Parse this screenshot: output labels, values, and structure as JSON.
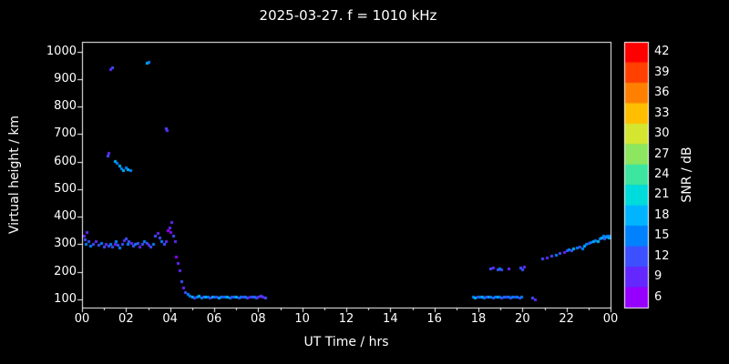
{
  "chart_data": {
    "type": "scatter",
    "title": "2025-03-27. f = 1010 kHz",
    "xlabel": "UT Time / hrs",
    "ylabel": "Virtual height / km",
    "xlim": [
      0,
      24
    ],
    "ylim": [
      70,
      1035
    ],
    "grid": false,
    "background": "#000000",
    "x_tick_labels": [
      "00",
      "02",
      "04",
      "06",
      "08",
      "10",
      "12",
      "14",
      "16",
      "18",
      "20",
      "22",
      "00"
    ],
    "x_tick_hours": [
      0,
      2,
      4,
      6,
      8,
      10,
      12,
      14,
      16,
      18,
      20,
      22,
      24
    ],
    "y_ticks": [
      100,
      200,
      300,
      400,
      500,
      600,
      700,
      800,
      900,
      1000
    ],
    "colorbar": {
      "label": "SNR / dB",
      "values": [
        42,
        39,
        36,
        33,
        30,
        27,
        24,
        21,
        18,
        15,
        12,
        9,
        6
      ],
      "colors": [
        "#ff0000",
        "#ff4000",
        "#ff8000",
        "#ffbf00",
        "#d4e630",
        "#8ce65f",
        "#3ce6a0",
        "#00dcdc",
        "#00b4ff",
        "#0082ff",
        "#3c50ff",
        "#6428ff",
        "#9600ff"
      ]
    },
    "points": [
      [
        0.08,
        330,
        9
      ],
      [
        0.12,
        318,
        12
      ],
      [
        0.18,
        300,
        15
      ],
      [
        0.22,
        345,
        9
      ],
      [
        0.3,
        310,
        12
      ],
      [
        0.38,
        295,
        15
      ],
      [
        0.5,
        302,
        12
      ],
      [
        0.62,
        310,
        9
      ],
      [
        0.75,
        298,
        12
      ],
      [
        0.88,
        305,
        15
      ],
      [
        1.0,
        292,
        12
      ],
      [
        1.08,
        300,
        9
      ],
      [
        1.18,
        296,
        12
      ],
      [
        1.28,
        302,
        15
      ],
      [
        1.38,
        290,
        12
      ],
      [
        1.48,
        300,
        9
      ],
      [
        1.52,
        312,
        15
      ],
      [
        1.6,
        298,
        12
      ],
      [
        1.7,
        288,
        15
      ],
      [
        1.8,
        300,
        12
      ],
      [
        1.9,
        315,
        9
      ],
      [
        1.98,
        322,
        12
      ],
      [
        2.05,
        302,
        15
      ],
      [
        2.12,
        310,
        12
      ],
      [
        2.22,
        306,
        9
      ],
      [
        2.32,
        296,
        12
      ],
      [
        2.42,
        300,
        15
      ],
      [
        2.52,
        306,
        12
      ],
      [
        2.62,
        290,
        9
      ],
      [
        2.72,
        300,
        12
      ],
      [
        2.82,
        312,
        15
      ],
      [
        2.92,
        304,
        12
      ],
      [
        3.02,
        298,
        9
      ],
      [
        3.12,
        290,
        12
      ],
      [
        3.22,
        302,
        15
      ],
      [
        3.32,
        330,
        12
      ],
      [
        3.42,
        342,
        9
      ],
      [
        3.52,
        326,
        12
      ],
      [
        3.62,
        312,
        15
      ],
      [
        3.72,
        300,
        12
      ],
      [
        3.82,
        312,
        9
      ],
      [
        3.9,
        352,
        6
      ],
      [
        3.96,
        362,
        9
      ],
      [
        4.02,
        344,
        6
      ],
      [
        4.06,
        382,
        9
      ],
      [
        4.12,
        332,
        12
      ],
      [
        4.2,
        312,
        9
      ],
      [
        1.15,
        622,
        12
      ],
      [
        1.22,
        632,
        9
      ],
      [
        1.3,
        936,
        9
      ],
      [
        1.36,
        942,
        12
      ],
      [
        1.5,
        602,
        18
      ],
      [
        1.58,
        596,
        15
      ],
      [
        1.68,
        586,
        18
      ],
      [
        1.78,
        576,
        15
      ],
      [
        1.88,
        570,
        18
      ],
      [
        1.98,
        580,
        15
      ],
      [
        2.08,
        572,
        18
      ],
      [
        2.18,
        568,
        15
      ],
      [
        2.95,
        958,
        18
      ],
      [
        3.02,
        962,
        15
      ],
      [
        3.8,
        722,
        12
      ],
      [
        3.86,
        716,
        9
      ],
      [
        4.28,
        256,
        6
      ],
      [
        4.34,
        232,
        9
      ],
      [
        4.42,
        206,
        9
      ],
      [
        4.5,
        166,
        12
      ],
      [
        4.58,
        142,
        9
      ],
      [
        4.68,
        126,
        12
      ],
      [
        4.78,
        118,
        15
      ],
      [
        4.9,
        112,
        15
      ],
      [
        5.0,
        110,
        18
      ],
      [
        5.1,
        108,
        12
      ],
      [
        5.2,
        110,
        15
      ],
      [
        5.3,
        112,
        18
      ],
      [
        5.4,
        108,
        15
      ],
      [
        5.5,
        110,
        12
      ],
      [
        5.6,
        109,
        18
      ],
      [
        5.7,
        111,
        15
      ],
      [
        5.8,
        108,
        12
      ],
      [
        5.9,
        110,
        18
      ],
      [
        6.0,
        109,
        15
      ],
      [
        6.1,
        110,
        12
      ],
      [
        6.2,
        108,
        18
      ],
      [
        6.3,
        110,
        15
      ],
      [
        6.4,
        111,
        12
      ],
      [
        6.5,
        109,
        15
      ],
      [
        6.6,
        110,
        18
      ],
      [
        6.7,
        108,
        15
      ],
      [
        6.8,
        110,
        12
      ],
      [
        6.9,
        109,
        15
      ],
      [
        7.0,
        110,
        18
      ],
      [
        7.1,
        108,
        12
      ],
      [
        7.2,
        110,
        15
      ],
      [
        7.3,
        109,
        12
      ],
      [
        7.4,
        110,
        15
      ],
      [
        7.5,
        108,
        12
      ],
      [
        7.6,
        110,
        9
      ],
      [
        7.7,
        109,
        12
      ],
      [
        7.8,
        110,
        15
      ],
      [
        7.9,
        108,
        12
      ],
      [
        8.0,
        110,
        9
      ],
      [
        8.1,
        112,
        12
      ],
      [
        8.2,
        110,
        9
      ],
      [
        8.3,
        108,
        12
      ],
      [
        17.75,
        110,
        15
      ],
      [
        17.85,
        108,
        18
      ],
      [
        17.95,
        110,
        12
      ],
      [
        18.05,
        109,
        15
      ],
      [
        18.15,
        110,
        18
      ],
      [
        18.25,
        108,
        15
      ],
      [
        18.35,
        110,
        12
      ],
      [
        18.45,
        109,
        18
      ],
      [
        18.55,
        110,
        15
      ],
      [
        18.65,
        108,
        12
      ],
      [
        18.75,
        110,
        15
      ],
      [
        18.85,
        109,
        18
      ],
      [
        18.95,
        110,
        15
      ],
      [
        19.05,
        108,
        12
      ],
      [
        19.15,
        110,
        15
      ],
      [
        19.25,
        109,
        12
      ],
      [
        19.35,
        110,
        15
      ],
      [
        19.45,
        108,
        12
      ],
      [
        19.55,
        110,
        15
      ],
      [
        19.65,
        109,
        12
      ],
      [
        19.75,
        110,
        15
      ],
      [
        19.85,
        108,
        12
      ],
      [
        19.95,
        110,
        15
      ],
      [
        20.45,
        105,
        12
      ],
      [
        20.55,
        100,
        9
      ],
      [
        18.55,
        212,
        12
      ],
      [
        18.65,
        215,
        9
      ],
      [
        18.85,
        210,
        12
      ],
      [
        18.95,
        212,
        15
      ],
      [
        19.05,
        210,
        12
      ],
      [
        19.35,
        212,
        9
      ],
      [
        19.9,
        215,
        12
      ],
      [
        20.0,
        210,
        12
      ],
      [
        20.05,
        218,
        9
      ],
      [
        20.9,
        248,
        12
      ],
      [
        21.1,
        252,
        9
      ],
      [
        21.3,
        258,
        12
      ],
      [
        21.5,
        262,
        15
      ],
      [
        21.7,
        268,
        12
      ],
      [
        21.9,
        272,
        9
      ],
      [
        22.0,
        278,
        12
      ],
      [
        22.1,
        282,
        15
      ],
      [
        22.2,
        278,
        12
      ],
      [
        22.3,
        285,
        18
      ],
      [
        22.45,
        288,
        15
      ],
      [
        22.6,
        292,
        12
      ],
      [
        22.7,
        286,
        15
      ],
      [
        22.8,
        295,
        18
      ],
      [
        22.9,
        300,
        15
      ],
      [
        23.0,
        305,
        12
      ],
      [
        23.1,
        308,
        15
      ],
      [
        23.2,
        312,
        18
      ],
      [
        23.3,
        316,
        15
      ],
      [
        23.4,
        310,
        18
      ],
      [
        23.5,
        320,
        15
      ],
      [
        23.6,
        325,
        18
      ],
      [
        23.65,
        330,
        15
      ],
      [
        23.7,
        322,
        12
      ],
      [
        23.8,
        328,
        18
      ],
      [
        23.85,
        332,
        15
      ],
      [
        23.9,
        325,
        18
      ],
      [
        23.95,
        330,
        15
      ]
    ]
  }
}
